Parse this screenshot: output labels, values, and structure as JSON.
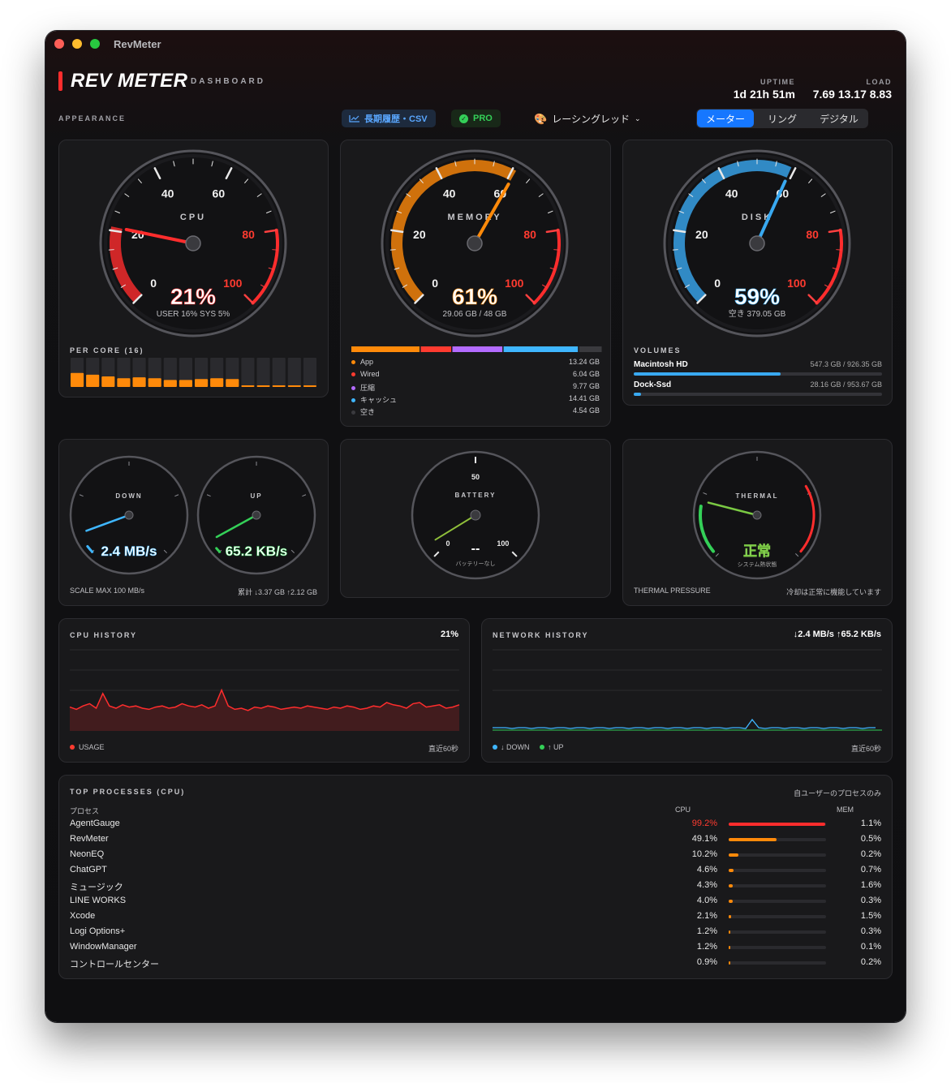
{
  "window": {
    "title": "RevMeter"
  },
  "header": {
    "brand": "REV METER",
    "subtitle": "DASHBOARD",
    "uptime_label": "UPTIME",
    "uptime": "1d 21h 51m",
    "load_label": "LOAD",
    "load": "7.69 13.17 8.83"
  },
  "toolbar": {
    "appearance": "APPEARANCE",
    "history_csv": "長期履歴・CSV",
    "pro": "PRO",
    "theme": "レーシングレッド",
    "modes": [
      "メーター",
      "リング",
      "デジタル"
    ],
    "active_mode": "メーター"
  },
  "cpu": {
    "label": "CPU",
    "ticks": [
      "0",
      "20",
      "40",
      "60",
      "80",
      "100"
    ],
    "value_pct": 21,
    "value_text": "21%",
    "sub": "USER 16%  SYS 5%",
    "per_core_label": "PER CORE (16)",
    "cores": [
      0.32,
      0.28,
      0.24,
      0.2,
      0.22,
      0.2,
      0.16,
      0.16,
      0.18,
      0.2,
      0.18,
      0.02,
      0.02,
      0.02,
      0.02,
      0.02
    ]
  },
  "memory": {
    "label": "MEMORY",
    "value_pct": 61,
    "value_text": "61%",
    "sub": "29.06 GB / 48 GB",
    "segments": [
      {
        "name": "App",
        "value": "13.24 GB",
        "gb": 13.24,
        "color": "#ff8a0a"
      },
      {
        "name": "Wired",
        "value": "6.04 GB",
        "gb": 6.04,
        "color": "#ff3b30"
      },
      {
        "name": "圧縮",
        "value": "9.77 GB",
        "gb": 9.77,
        "color": "#b36bff"
      },
      {
        "name": "キャッシュ",
        "value": "14.41 GB",
        "gb": 14.41,
        "color": "#3fb6ff"
      },
      {
        "name": "空き",
        "value": "4.54 GB",
        "gb": 4.54,
        "color": "#3a3a3e"
      }
    ]
  },
  "disk": {
    "label": "DISK",
    "value_pct": 59,
    "value_text": "59%",
    "sub": "空き 379.05 GB",
    "volumes_label": "VOLUMES",
    "volumes": [
      {
        "name": "Macintosh HD",
        "size": "547.3 GB / 926.35 GB",
        "frac": 0.59
      },
      {
        "name": "Dock-Ssd",
        "size": "28.16 GB / 953.67 GB",
        "frac": 0.03
      }
    ]
  },
  "network": {
    "down_label": "DOWN",
    "up_label": "UP",
    "down_text": "2.4 MB/s",
    "up_text": "65.2 KB/s",
    "down_frac": 0.024,
    "up_frac": 0.001,
    "scale": "SCALE MAX 100 MB/s",
    "total": "累計 ↓3.37 GB  ↑2.12 GB"
  },
  "battery": {
    "label": "BATTERY",
    "tick_50": "50",
    "tick_100": "100",
    "tick_0": "0",
    "value_text": "--",
    "sub": "バッテリーなし"
  },
  "thermal": {
    "label": "THERMAL",
    "value_text": "正常",
    "sub": "システム熱状態",
    "footer_label": "THERMAL PRESSURE",
    "footer_note": "冷却は正常に機能しています"
  },
  "cpu_history": {
    "title": "CPU HISTORY",
    "value": "21%",
    "legend": "USAGE",
    "range": "直近60秒",
    "series": [
      21,
      19,
      22,
      24,
      20,
      33,
      22,
      20,
      23,
      21,
      22,
      20,
      19,
      21,
      22,
      20,
      21,
      24,
      22,
      21,
      23,
      20,
      22,
      36,
      22,
      19,
      20,
      18,
      21,
      20,
      22,
      21,
      19,
      20,
      21,
      20,
      22,
      21,
      20,
      19,
      21,
      20,
      22,
      21,
      19,
      20,
      22,
      21,
      25,
      23,
      22,
      20,
      24,
      25,
      21,
      22,
      23,
      20,
      21,
      23
    ]
  },
  "network_history": {
    "title": "NETWORK HISTORY",
    "value": "↓2.4 MB/s  ↑65.2 KB/s",
    "down_legend": "↓ DOWN",
    "up_legend": "↑ UP",
    "range": "直近60秒"
  },
  "processes": {
    "title": "TOP PROCESSES (CPU)",
    "scope": "自ユーザーのプロセスのみ",
    "col_process": "プロセス",
    "col_cpu": "CPU",
    "col_mem": "MEM",
    "rows": [
      {
        "name": "AgentGauge",
        "cpu": "99.2%",
        "cpu_pct": 99.2,
        "mem": "1.1%"
      },
      {
        "name": "RevMeter",
        "cpu": "49.1%",
        "cpu_pct": 49.1,
        "mem": "0.5%"
      },
      {
        "name": "NeonEQ",
        "cpu": "10.2%",
        "cpu_pct": 10.2,
        "mem": "0.2%"
      },
      {
        "name": "ChatGPT",
        "cpu": "4.6%",
        "cpu_pct": 4.6,
        "mem": "0.7%"
      },
      {
        "name": "ミュージック",
        "cpu": "4.3%",
        "cpu_pct": 4.3,
        "mem": "1.6%"
      },
      {
        "name": "LINE WORKS",
        "cpu": "4.0%",
        "cpu_pct": 4.0,
        "mem": "0.3%"
      },
      {
        "name": "Xcode",
        "cpu": "2.1%",
        "cpu_pct": 2.1,
        "mem": "1.5%"
      },
      {
        "name": "Logi Options+",
        "cpu": "1.2%",
        "cpu_pct": 1.2,
        "mem": "0.3%"
      },
      {
        "name": "WindowManager",
        "cpu": "1.2%",
        "cpu_pct": 1.2,
        "mem": "0.1%"
      },
      {
        "name": "コントロールセンター",
        "cpu": "0.9%",
        "cpu_pct": 0.9,
        "mem": "0.2%"
      }
    ]
  }
}
